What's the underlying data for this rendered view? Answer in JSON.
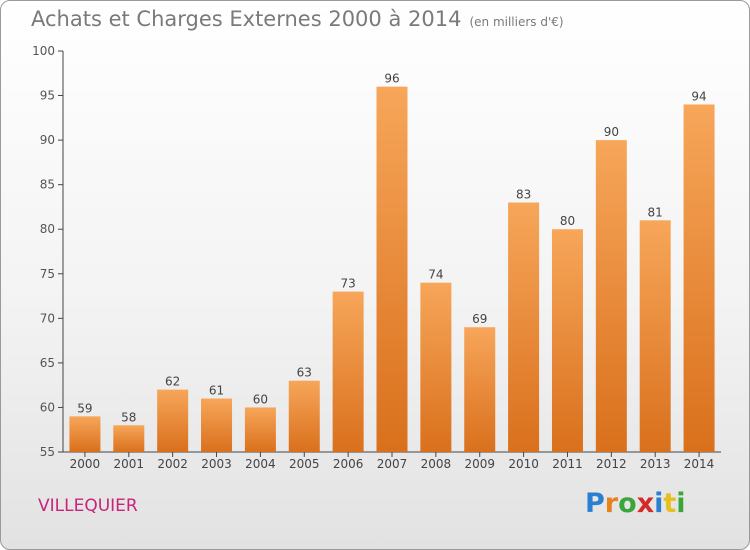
{
  "header": {
    "title": "Achats et Charges Externes 2000 à 2014",
    "subtitle": "(en milliers d'€)"
  },
  "footer": {
    "city": "VILLEQUIER",
    "brand": "Proxiti",
    "brand_letters": [
      {
        "char": "P",
        "color": "#2a7fd0"
      },
      {
        "char": "r",
        "color": "#e8821e"
      },
      {
        "char": "o",
        "color": "#3aa63a"
      },
      {
        "char": "x",
        "color": "#d42a2a"
      },
      {
        "char": "i",
        "color": "#2a7fd0"
      },
      {
        "char": "t",
        "color": "#e8c01e"
      },
      {
        "char": "i",
        "color": "#3aa63a"
      }
    ]
  },
  "chart_data": {
    "type": "bar",
    "title": "Achats et Charges Externes 2000 à 2014",
    "subtitle": "(en milliers d'€)",
    "xlabel": "",
    "ylabel": "",
    "categories": [
      "2000",
      "2001",
      "2002",
      "2003",
      "2004",
      "2005",
      "2006",
      "2007",
      "2008",
      "2009",
      "2010",
      "2011",
      "2012",
      "2013",
      "2014"
    ],
    "values": [
      59,
      58,
      62,
      61,
      60,
      63,
      73,
      96,
      74,
      69,
      83,
      80,
      90,
      81,
      94
    ],
    "ylim": [
      55,
      100
    ],
    "yticks": [
      55,
      60,
      65,
      70,
      75,
      80,
      85,
      90,
      95,
      100
    ],
    "grid": false,
    "legend": "none",
    "bar_color_light": "#f7a65a",
    "bar_color_dark": "#d9701c"
  }
}
